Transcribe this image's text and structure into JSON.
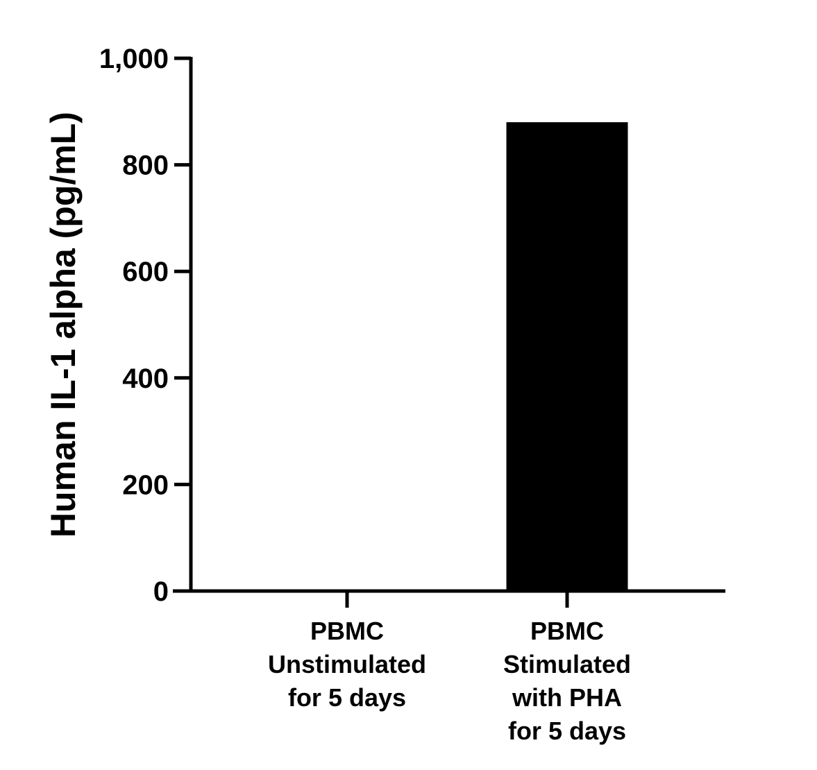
{
  "chart_data": {
    "type": "bar",
    "title": "",
    "xlabel": "",
    "ylabel": "Human IL-1 alpha (pg/mL)",
    "ylim": [
      0,
      1000
    ],
    "yticks": [
      0,
      200,
      400,
      600,
      800,
      1000
    ],
    "ytick_labels": [
      "0",
      "200",
      "400",
      "600",
      "800",
      "1,000"
    ],
    "categories": [
      [
        "PBMC",
        "Unstimulated",
        "for 5 days"
      ],
      [
        "PBMC",
        "Stimulated",
        "with PHA",
        "for 5 days"
      ]
    ],
    "values": [
      0,
      880
    ],
    "bar_color": "#000000",
    "grid": false,
    "legend": "none"
  }
}
